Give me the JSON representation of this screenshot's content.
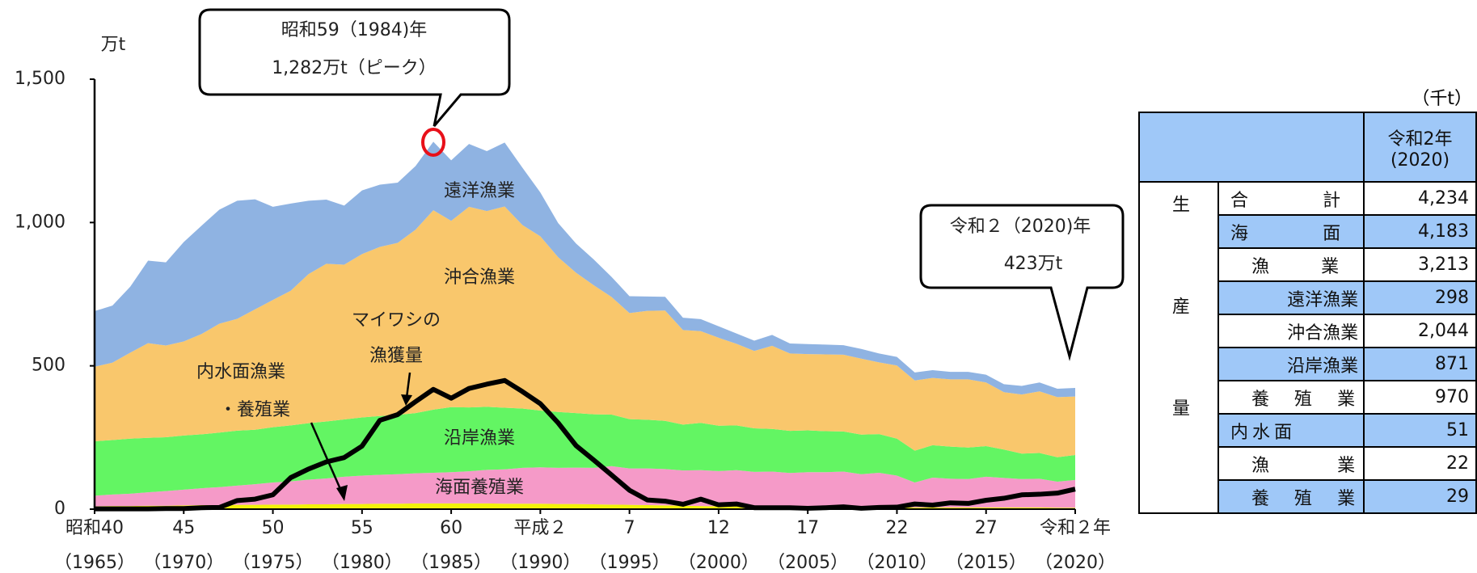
{
  "chart_data": {
    "type": "area",
    "y_unit": "万t",
    "x": [
      1965,
      1966,
      1967,
      1968,
      1969,
      1970,
      1971,
      1972,
      1973,
      1974,
      1975,
      1976,
      1977,
      1978,
      1979,
      1980,
      1981,
      1982,
      1983,
      1984,
      1985,
      1986,
      1987,
      1988,
      1989,
      1990,
      1991,
      1992,
      1993,
      1994,
      1995,
      1996,
      1997,
      1998,
      1999,
      2000,
      2001,
      2002,
      2003,
      2004,
      2005,
      2006,
      2007,
      2008,
      2009,
      2010,
      2011,
      2012,
      2013,
      2014,
      2015,
      2016,
      2017,
      2018,
      2019,
      2020
    ],
    "xlim": [
      1965,
      2020
    ],
    "xticks": [
      {
        "value": 1965,
        "label": "昭和40",
        "label2": "（1965）"
      },
      {
        "value": 1970,
        "label": "45",
        "label2": "（1970）"
      },
      {
        "value": 1975,
        "label": "50",
        "label2": "（1975）"
      },
      {
        "value": 1980,
        "label": "55",
        "label2": "（1980）"
      },
      {
        "value": 1985,
        "label": "60",
        "label2": "（1985）"
      },
      {
        "value": 1990,
        "label": "平成２",
        "label2": "（1990）"
      },
      {
        "value": 1995,
        "label": "7",
        "label2": "（1995）"
      },
      {
        "value": 2000,
        "label": "12",
        "label2": "（2000）"
      },
      {
        "value": 2005,
        "label": "17",
        "label2": "（2005）"
      },
      {
        "value": 2010,
        "label": "22",
        "label2": "（2010）"
      },
      {
        "value": 2015,
        "label": "27",
        "label2": "（2015）"
      },
      {
        "value": 2020,
        "label": "令和２年",
        "label2": "（2020）"
      }
    ],
    "ylim": [
      0,
      1500
    ],
    "yticks": [
      0,
      500,
      {
        "value": 1000,
        "label": "1,000"
      },
      {
        "value": 1500,
        "label": "1,500"
      }
    ],
    "series": [
      {
        "name": [
          "内水面漁業",
          "・養殖業"
        ],
        "color": "#f2f20a",
        "values": [
          10,
          11,
          11,
          12,
          12,
          13,
          14,
          14,
          15,
          15,
          16,
          16,
          17,
          17,
          18,
          18,
          19,
          19,
          20,
          20,
          20,
          20,
          20,
          19,
          19,
          19,
          18,
          18,
          17,
          16,
          15,
          14,
          13,
          12,
          11,
          10,
          10,
          9,
          9,
          8,
          8,
          8,
          7,
          7,
          7,
          6,
          6,
          6,
          6,
          6,
          6,
          6,
          6,
          6,
          5,
          5
        ]
      },
      {
        "name": "海面養殖業",
        "color": "#f59ac8",
        "values": [
          37,
          40,
          43,
          47,
          51,
          55,
          59,
          63,
          67,
          72,
          77,
          81,
          86,
          90,
          95,
          99,
          101,
          103,
          105,
          107,
          109,
          112,
          117,
          120,
          125,
          127,
          126,
          127,
          127,
          134,
          127,
          128,
          127,
          123,
          125,
          123,
          126,
          121,
          122,
          118,
          121,
          121,
          124,
          115,
          120,
          111,
          87,
          104,
          100,
          99,
          107,
          103,
          99,
          100,
          91,
          97
        ]
      },
      {
        "name": "沿岸漁業",
        "color": "#63f563",
        "values": [
          190,
          190,
          192,
          190,
          188,
          189,
          188,
          190,
          192,
          190,
          193,
          195,
          197,
          199,
          200,
          203,
          205,
          207,
          210,
          220,
          227,
          223,
          220,
          215,
          207,
          198,
          195,
          190,
          187,
          180,
          172,
          170,
          168,
          160,
          165,
          158,
          156,
          152,
          149,
          147,
          146,
          143,
          140,
          138,
          135,
          129,
          111,
          113,
          112,
          110,
          107,
          99,
          89,
          90,
          85,
          87
        ]
      },
      {
        "name": "沖合漁業",
        "color": "#f9c76c",
        "values": [
          260,
          270,
          300,
          330,
          320,
          328,
          350,
          380,
          390,
          420,
          444,
          470,
          520,
          550,
          540,
          570,
          590,
          600,
          640,
          696,
          650,
          700,
          683,
          702,
          640,
          608,
          540,
          490,
          450,
          410,
          370,
          380,
          385,
          330,
          320,
          307,
          285,
          270,
          290,
          270,
          266,
          268,
          268,
          265,
          250,
          255,
          245,
          235,
          235,
          238,
          222,
          200,
          206,
          215,
          210,
          204
        ]
      },
      {
        "name": "遠洋漁業",
        "color": "#8fb3e2",
        "values": [
          194,
          199,
          230,
          288,
          290,
          347,
          378,
          398,
          412,
          384,
          325,
          304,
          256,
          224,
          206,
          222,
          217,
          210,
          222,
          239,
          211,
          219,
          209,
          223,
          200,
          153,
          119,
          102,
          90,
          70,
          59,
          50,
          48,
          43,
          42,
          40,
          36,
          36,
          38,
          35,
          35,
          34,
          33,
          34,
          31,
          30,
          28,
          27,
          26,
          26,
          27,
          28,
          30,
          31,
          29,
          30
        ]
      },
      {
        "name": [
          "マイワシの",
          "漁獲量"
        ],
        "type": "line",
        "color": "#000000",
        "values": [
          1,
          1,
          1,
          1,
          2,
          2,
          5,
          6,
          30,
          35,
          50,
          110,
          140,
          165,
          180,
          220,
          310,
          330,
          375,
          418,
          387,
          421,
          436,
          449,
          410,
          368,
          301,
          222,
          171,
          119,
          66,
          32,
          28,
          17,
          35,
          15,
          18,
          5,
          5,
          5,
          3,
          5,
          8,
          3,
          6,
          7,
          18,
          14,
          22,
          20,
          31,
          38,
          50,
          52,
          56,
          70
        ]
      }
    ],
    "annotations": [
      {
        "lines": [
          "昭和59（1984)年",
          "1,282万t（ピーク）"
        ]
      },
      {
        "lines": [
          "令和２（2020)年",
          "423万t"
        ]
      }
    ]
  },
  "table": {
    "unit": "（千t）",
    "header": [
      "令和2年",
      "(2020)"
    ],
    "side": "生産量",
    "rows": [
      [
        "合計",
        "4,234"
      ],
      [
        "海面",
        "4,183"
      ],
      [
        "漁業",
        "3,213"
      ],
      [
        "遠洋漁業",
        "298"
      ],
      [
        "沖合漁業",
        "2,044"
      ],
      [
        "沿岸漁業",
        "871"
      ],
      [
        "養殖業",
        "970"
      ],
      [
        "内水面",
        "51"
      ],
      [
        "漁業",
        "22"
      ],
      [
        "養殖業",
        "29"
      ]
    ]
  }
}
